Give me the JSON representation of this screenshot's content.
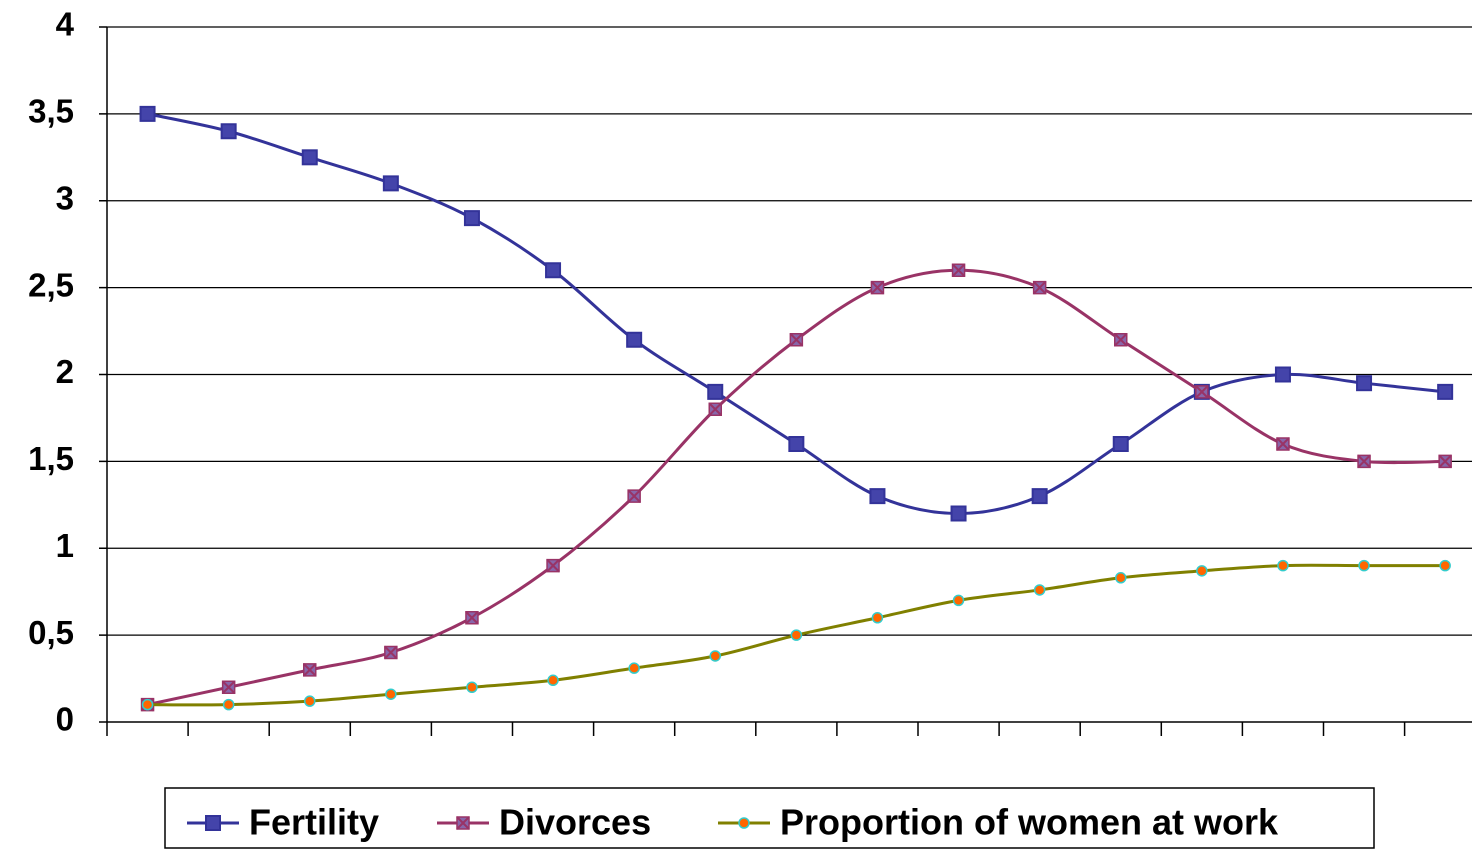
{
  "chart_data": {
    "type": "line",
    "categories": [
      null,
      null,
      null,
      null,
      null,
      null,
      null,
      null,
      null,
      null,
      null,
      null,
      null,
      null,
      null,
      null,
      null
    ],
    "series": [
      {
        "name": "Fertility",
        "color": "#333399",
        "marker": "square",
        "values": [
          3.5,
          3.4,
          3.25,
          3.1,
          2.9,
          2.6,
          2.2,
          1.9,
          1.6,
          1.3,
          1.2,
          1.3,
          1.6,
          1.9,
          2.0,
          1.95,
          1.9
        ]
      },
      {
        "name": "Divorces",
        "color": "#993366",
        "marker": "x",
        "values": [
          0.1,
          0.2,
          0.3,
          0.4,
          0.6,
          0.9,
          1.3,
          1.8,
          2.2,
          2.5,
          2.6,
          2.5,
          2.2,
          1.9,
          1.6,
          1.5,
          1.5
        ]
      },
      {
        "name": "Proportion of women at work",
        "color": "#808000",
        "marker": "circle",
        "values": [
          0.1,
          0.1,
          0.12,
          0.16,
          0.2,
          0.24,
          0.31,
          0.38,
          0.5,
          0.6,
          0.7,
          0.76,
          0.83,
          0.87,
          0.9,
          0.9,
          0.9
        ]
      }
    ],
    "ylim": [
      0,
      4
    ],
    "yticks": [
      0,
      {
        "value": 0.5,
        "label": "0,5"
      },
      1,
      {
        "value": 1.5,
        "label": "1,5"
      },
      2,
      {
        "value": 2.5,
        "label": "2,5"
      },
      3,
      {
        "value": 3.5,
        "label": "3,5"
      },
      4
    ],
    "grid": true,
    "legend": "bottom"
  }
}
